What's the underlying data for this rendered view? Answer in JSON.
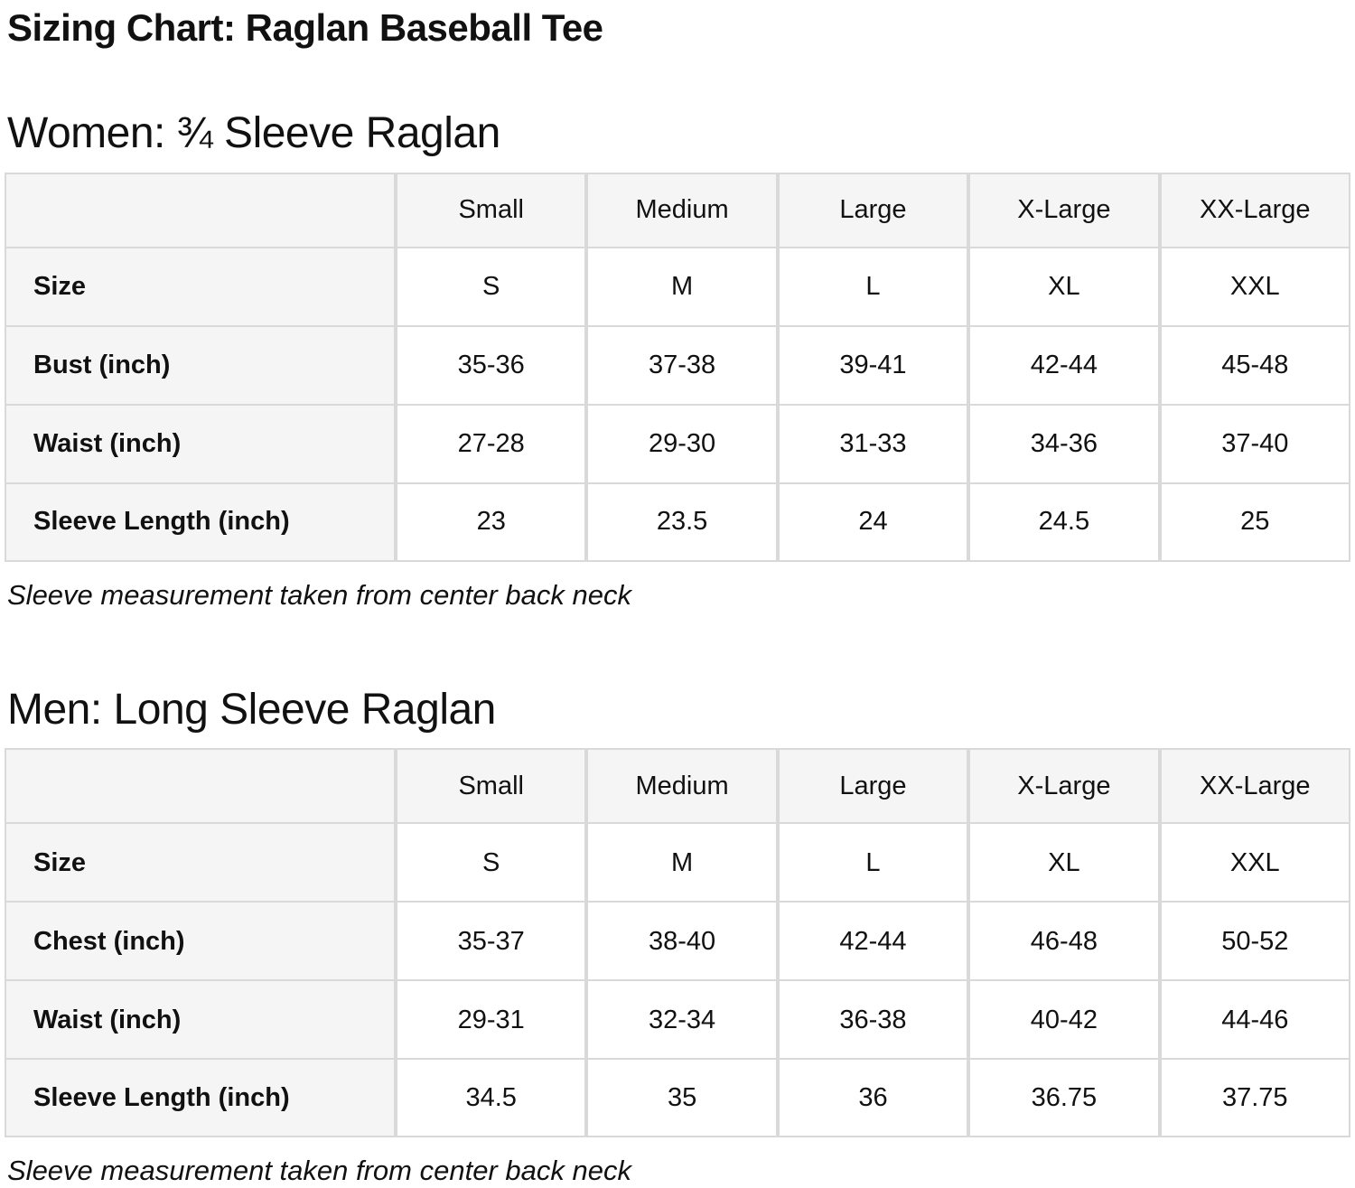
{
  "page": {
    "title": "Sizing Chart: Raglan Baseball Tee"
  },
  "colors": {
    "header_cell_bg": "#f5f5f5",
    "label_cell_bg": "#f5f5f5",
    "border": "#d9d9d9",
    "text": "#111111",
    "page_bg": "#ffffff"
  },
  "sections": [
    {
      "id": "women",
      "heading": "Women: ¾ Sleeve Raglan",
      "note": "Sleeve measurement taken from center back neck",
      "table": {
        "columns": [
          "",
          "Small",
          "Medium",
          "Large",
          "X-Large",
          "XX-Large"
        ],
        "rows": [
          {
            "label": "Size",
            "values": [
              "S",
              "M",
              "L",
              "XL",
              "XXL"
            ]
          },
          {
            "label": "Bust (inch)",
            "values": [
              "35-36",
              "37-38",
              "39-41",
              "42-44",
              "45-48"
            ]
          },
          {
            "label": "Waist (inch)",
            "values": [
              "27-28",
              "29-30",
              "31-33",
              "34-36",
              "37-40"
            ]
          },
          {
            "label": "Sleeve Length (inch)",
            "values": [
              "23",
              "23.5",
              "24",
              "24.5",
              "25"
            ]
          }
        ]
      }
    },
    {
      "id": "men",
      "heading": "Men: Long Sleeve Raglan",
      "note": "Sleeve measurement taken from center back neck",
      "table": {
        "columns": [
          "",
          "Small",
          "Medium",
          "Large",
          "X-Large",
          "XX-Large"
        ],
        "rows": [
          {
            "label": "Size",
            "values": [
              "S",
              "M",
              "L",
              "XL",
              "XXL"
            ]
          },
          {
            "label": "Chest (inch)",
            "values": [
              "35-37",
              "38-40",
              "42-44",
              "46-48",
              "50-52"
            ]
          },
          {
            "label": "Waist (inch)",
            "values": [
              "29-31",
              "32-34",
              "36-38",
              "40-42",
              "44-46"
            ]
          },
          {
            "label": "Sleeve Length (inch)",
            "values": [
              "34.5",
              "35",
              "36",
              "36.75",
              "37.75"
            ]
          }
        ]
      }
    }
  ]
}
